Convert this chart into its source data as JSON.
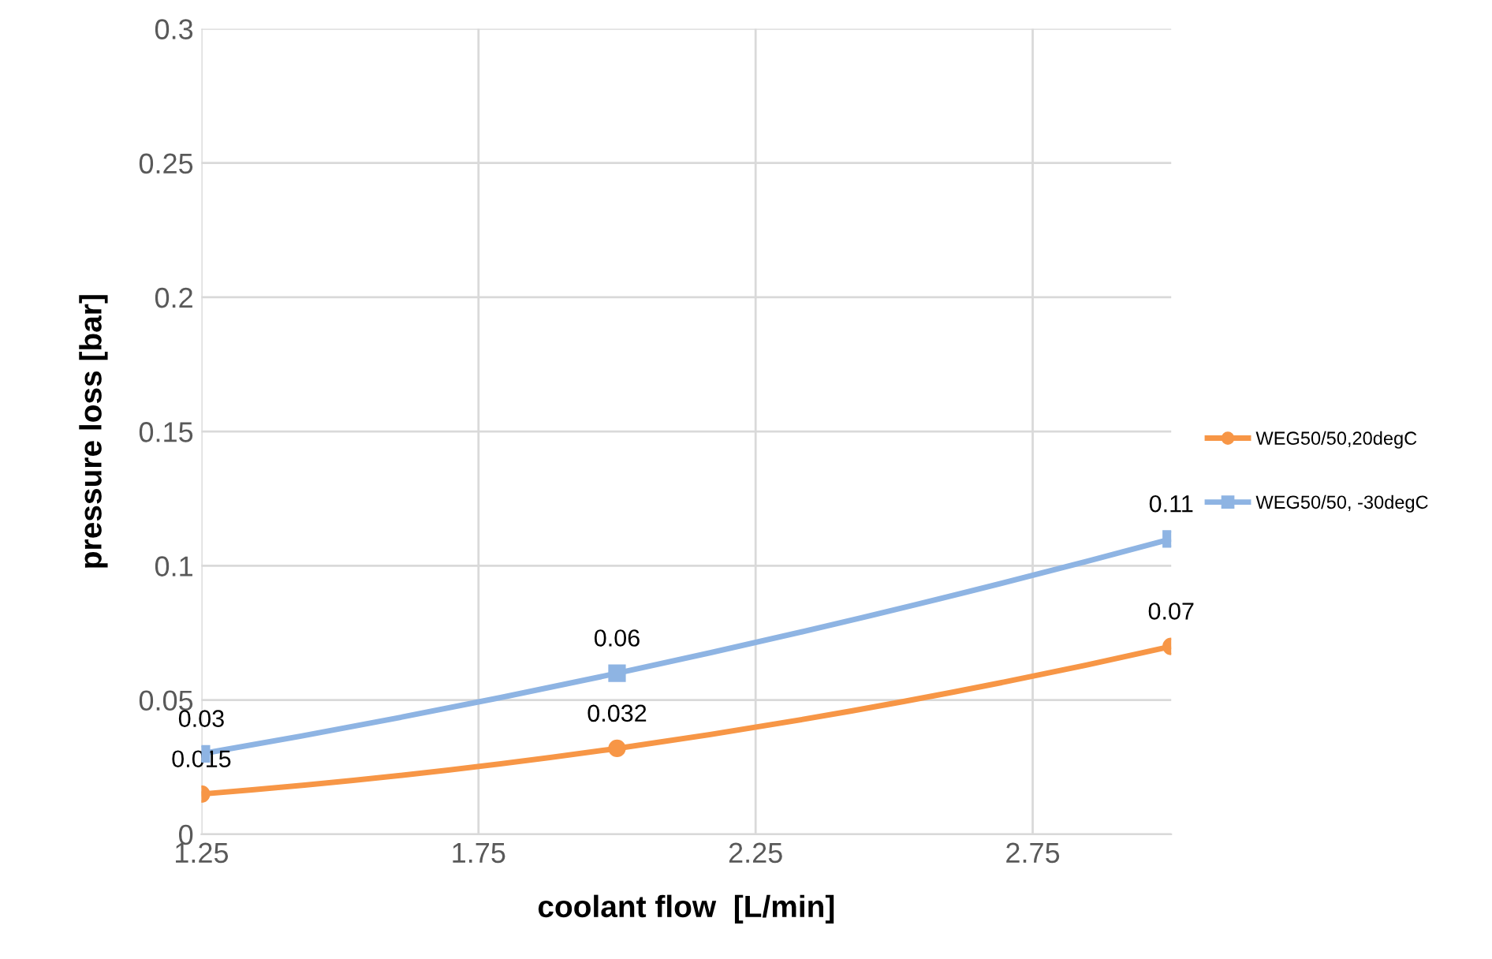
{
  "chart_data": {
    "type": "line",
    "xlabel": "coolant flow  [L/min]",
    "ylabel": "pressure loss [bar]",
    "xlim": [
      1.25,
      3.0
    ],
    "xticks": [
      1.25,
      1.75,
      2.25,
      2.75
    ],
    "ylim": [
      0,
      0.3
    ],
    "yticks": [
      0,
      0.05,
      0.1,
      0.15,
      0.2,
      0.25,
      0.3
    ],
    "grid": true,
    "legend": "right",
    "data_labels": true,
    "series": [
      {
        "name": "WEG50/50,20degC",
        "color": "#f79646",
        "marker": "circle",
        "x": [
          1.25,
          2.0,
          3.0
        ],
        "values": [
          0.015,
          0.032,
          0.07
        ]
      },
      {
        "name": "WEG50/50, -30degC",
        "color": "#8eb4e3",
        "marker": "square",
        "x": [
          1.25,
          2.0,
          3.0
        ],
        "values": [
          0.03,
          0.06,
          0.11
        ]
      }
    ]
  }
}
